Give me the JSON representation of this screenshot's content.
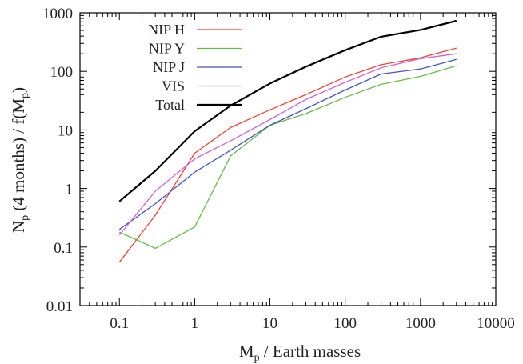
{
  "chart_data": {
    "type": "line",
    "title": "",
    "xlabel": {
      "prefix": "M",
      "subscript": "p",
      "suffix": " / Earth masses"
    },
    "ylabel": {
      "parts": [
        {
          "text": "N"
        },
        {
          "text": "p",
          "sub": true
        },
        {
          "text": " (4 months) / f(M"
        },
        {
          "text": "p",
          "sub": true
        },
        {
          "text": ")"
        }
      ]
    },
    "x_scale": "log",
    "y_scale": "log",
    "xlim": [
      0.03,
      10000
    ],
    "ylim": [
      0.01,
      1000
    ],
    "x_ticks": [
      {
        "value": 0.1,
        "label": "0.1"
      },
      {
        "value": 1,
        "label": "1"
      },
      {
        "value": 10,
        "label": "10"
      },
      {
        "value": 100,
        "label": "100"
      },
      {
        "value": 1000,
        "label": "1000"
      },
      {
        "value": 10000,
        "label": "10000"
      }
    ],
    "y_ticks": [
      {
        "value": 0.01,
        "label": "0.01"
      },
      {
        "value": 0.1,
        "label": "0.1"
      },
      {
        "value": 1,
        "label": "1"
      },
      {
        "value": 10,
        "label": "10"
      },
      {
        "value": 100,
        "label": "100"
      },
      {
        "value": 1000,
        "label": "1000"
      }
    ],
    "grid": false,
    "legend_position": "top-left",
    "x": [
      0.1,
      0.3,
      1,
      3,
      10,
      30,
      100,
      300,
      1000,
      3000
    ],
    "series": [
      {
        "name": "NIP H",
        "color": "#ee4433",
        "values": [
          0.055,
          0.35,
          4.0,
          11.0,
          22.0,
          40.0,
          80.0,
          130.0,
          170.0,
          250.0
        ]
      },
      {
        "name": "NIP Y",
        "color": "#66bb44",
        "values": [
          0.18,
          0.095,
          0.22,
          3.6,
          12.0,
          19.0,
          36.0,
          60.0,
          82.0,
          125.0
        ]
      },
      {
        "name": "NIP J",
        "color": "#4455bb",
        "values": [
          0.2,
          0.55,
          1.9,
          4.5,
          12.0,
          23.0,
          48.0,
          90.0,
          110.0,
          160.0
        ]
      },
      {
        "name": "VIS",
        "color": "#cc66cc",
        "values": [
          0.16,
          0.9,
          3.2,
          6.5,
          15.0,
          33.0,
          65.0,
          115.0,
          165.0,
          200.0
        ]
      },
      {
        "name": "Total",
        "color": "#000000",
        "values": [
          0.6,
          2.0,
          9.5,
          26.0,
          62.0,
          120.0,
          230.0,
          390.0,
          510.0,
          730.0
        ]
      }
    ]
  }
}
